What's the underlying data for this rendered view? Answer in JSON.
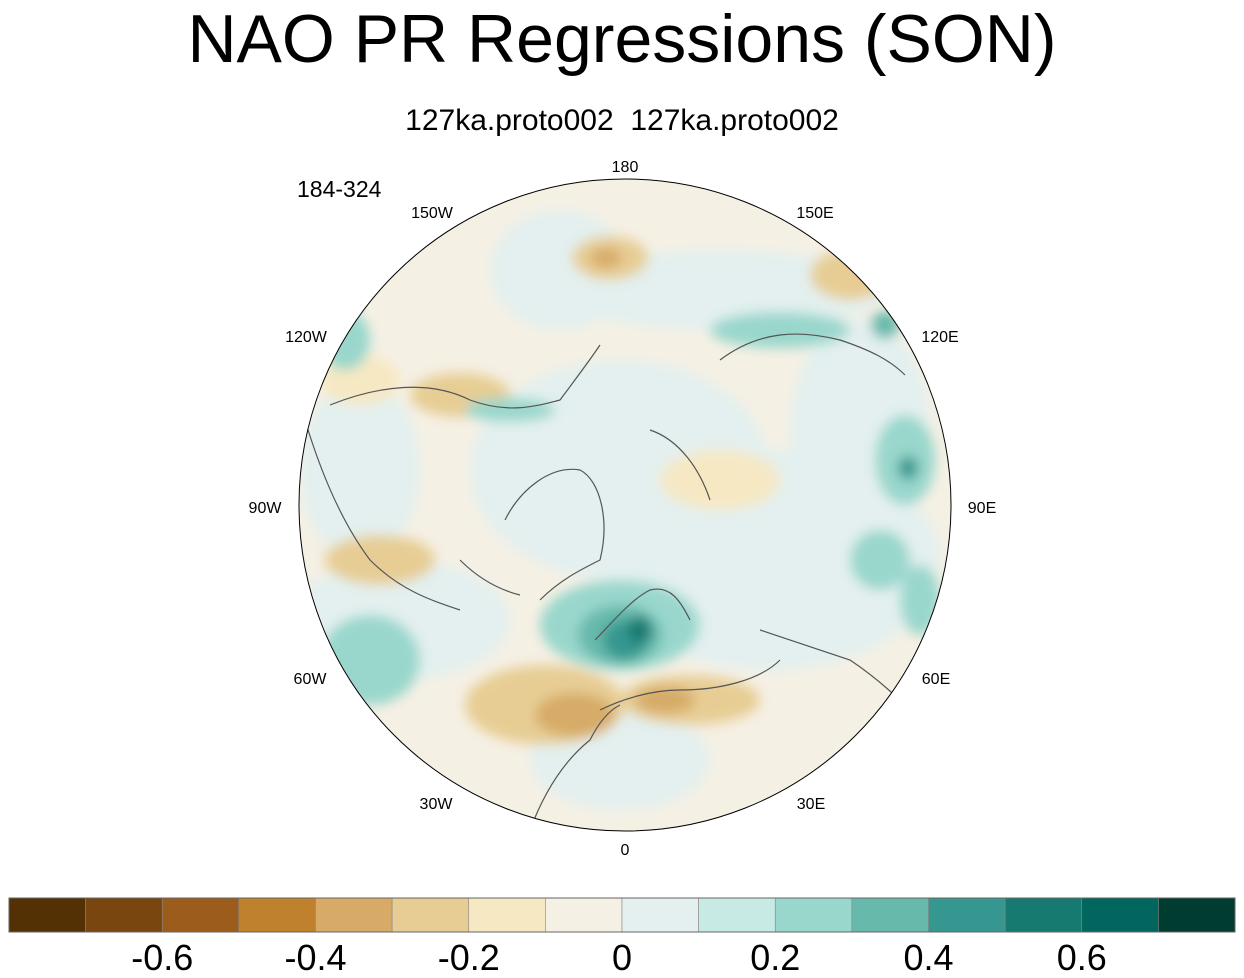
{
  "title": "NAO PR Regressions (SON)",
  "subtitle": "127ka.proto002  127ka.proto002",
  "years": "184-324",
  "longitude_labels": [
    "180",
    "150E",
    "120E",
    "90E",
    "60E",
    "30E",
    "0",
    "30W",
    "60W",
    "90W",
    "120W",
    "150W"
  ],
  "colorbar": {
    "colors": [
      "#543005",
      "#7a4610",
      "#9c5d1c",
      "#bf812d",
      "#d7ab67",
      "#e7cd94",
      "#f6e8c3",
      "#f5f0e4",
      "#e3f0ef",
      "#c7eae5",
      "#99d7cc",
      "#66b9ab",
      "#35978f",
      "#167a71",
      "#01665e",
      "#003c30"
    ],
    "tick_labels": [
      "-0.6",
      "-0.4",
      "-0.2",
      "0",
      "0.2",
      "0.4",
      "0.6"
    ]
  },
  "colors": {
    "background_neutral": "#f5f0e4",
    "light_teal": "#e3f0ef",
    "coastline": "#555555"
  }
}
